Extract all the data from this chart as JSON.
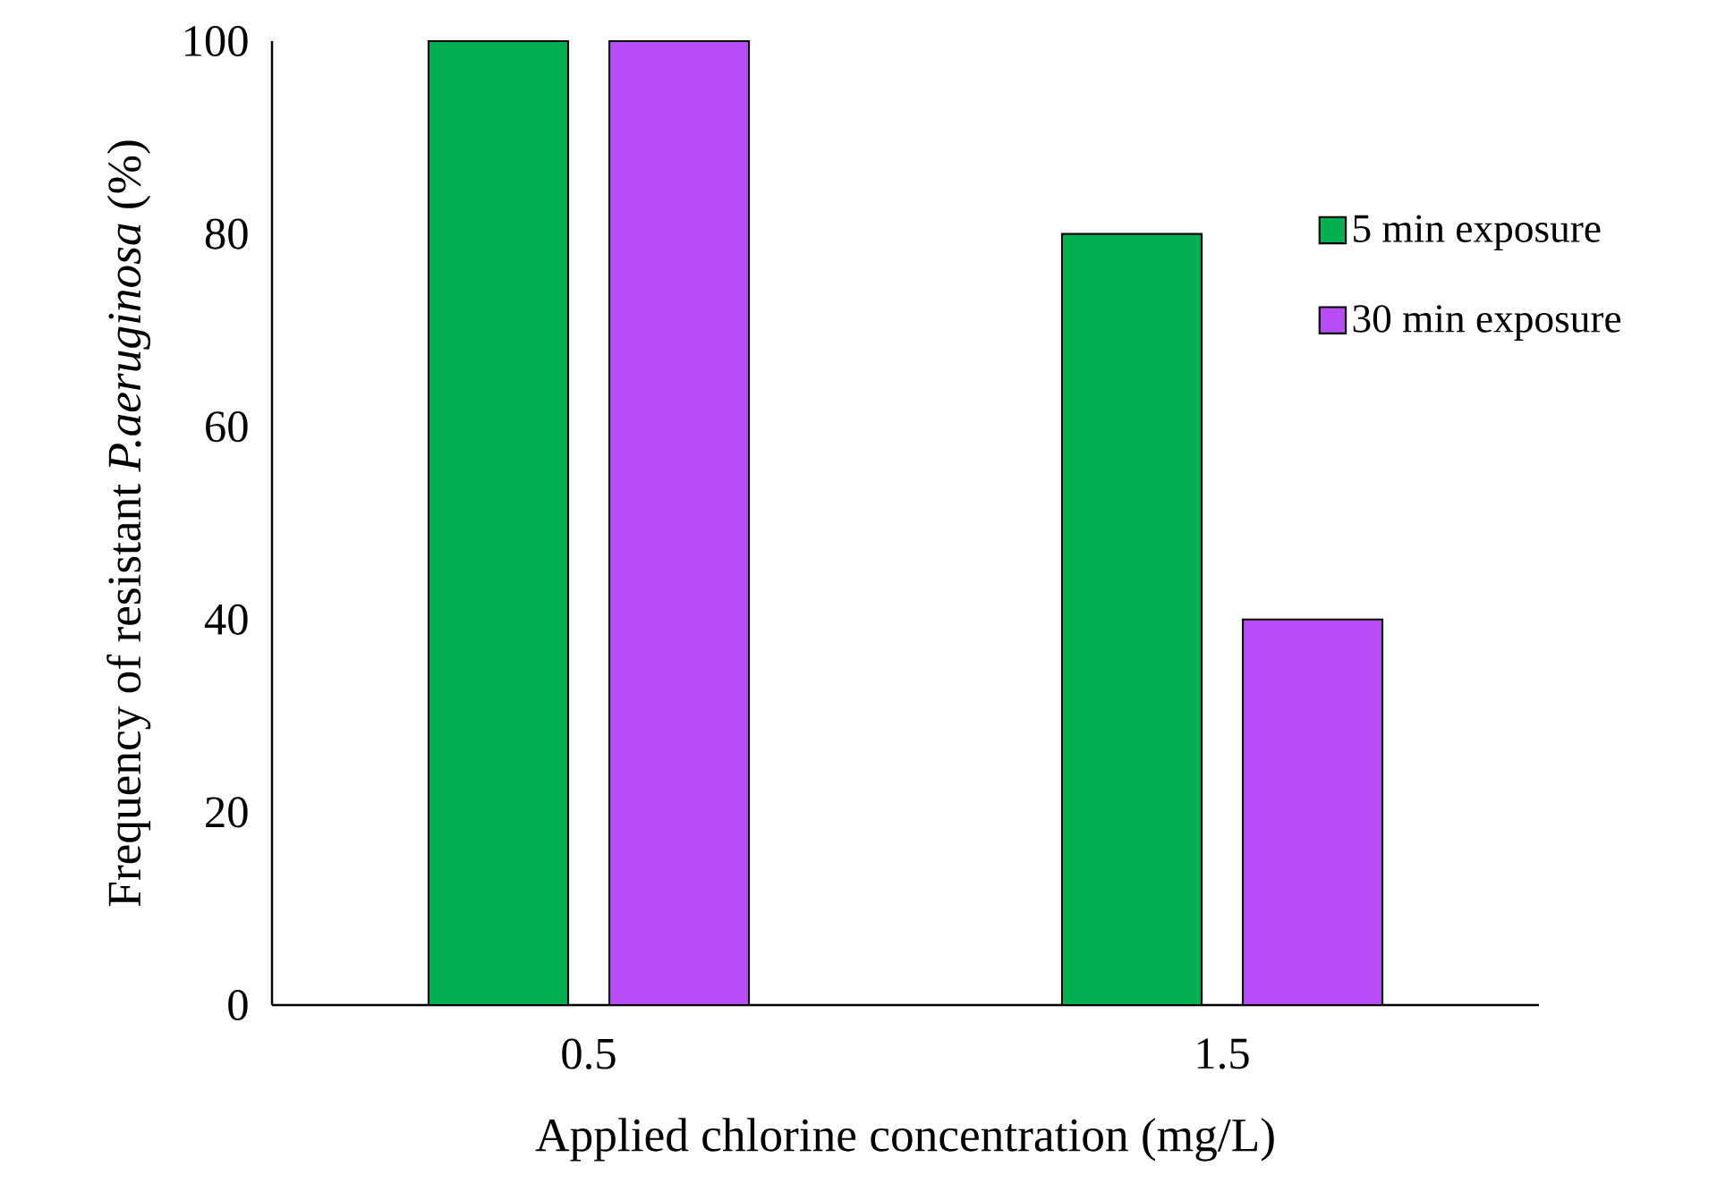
{
  "chart_data": {
    "type": "bar",
    "xlabel": "Applied chlorine concentration (mg/L)",
    "ylabel": "Frequency of resistant *P.aeruginosa* (%)",
    "categories": [
      "0.5",
      "1.5"
    ],
    "series": [
      {
        "name": "5 min exposure",
        "color": "#00b050",
        "values": [
          100,
          80
        ]
      },
      {
        "name": "30 min exposure",
        "color": "#b84cf6",
        "values": [
          100,
          40
        ]
      }
    ],
    "ylim": [
      0,
      100
    ],
    "yticks": [
      0,
      20,
      40,
      60,
      80,
      100
    ],
    "grid": false,
    "legend": "right"
  }
}
